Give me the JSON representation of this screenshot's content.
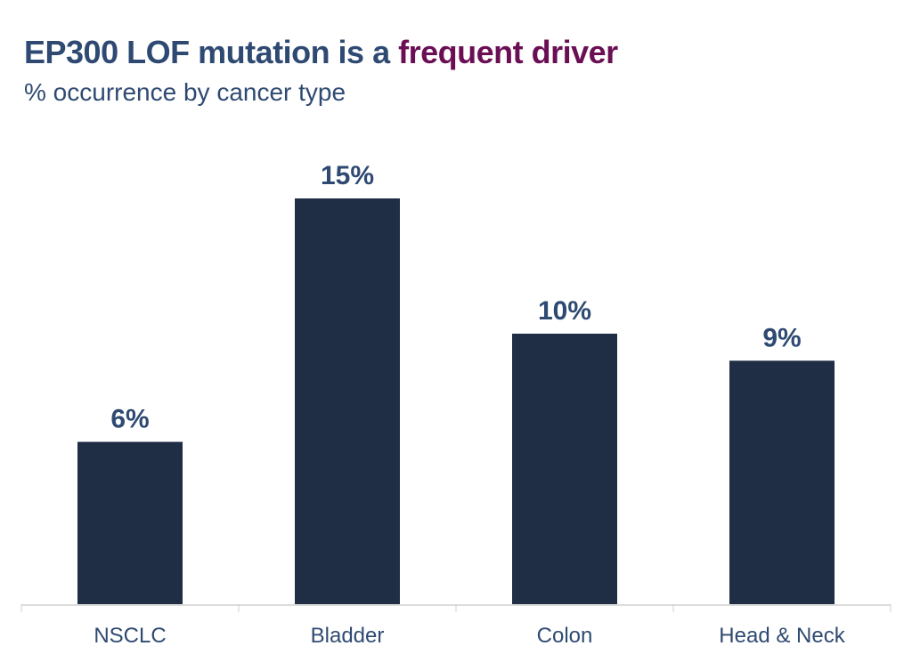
{
  "chart_data": {
    "type": "bar",
    "title": "EP300 LOF mutation is a frequent driver",
    "title_plain": "EP300 LOF mutation is a ",
    "title_highlight": "frequent driver",
    "subtitle": "% occurrence by cancer type",
    "categories": [
      "NSCLC",
      "Bladder",
      "Colon",
      "Head & Neck"
    ],
    "values": [
      6,
      15,
      10,
      9
    ],
    "data_labels": [
      "6%",
      "15%",
      "10%",
      "9%"
    ],
    "xlabel": "",
    "ylabel": "",
    "ylim": [
      0,
      15
    ],
    "grid": false,
    "colors": {
      "bar": "#1f2d45",
      "text": "#2f4a72",
      "highlight": "#6b0f55",
      "label": "#2f4a72",
      "axis": "#d0d0d0"
    }
  }
}
